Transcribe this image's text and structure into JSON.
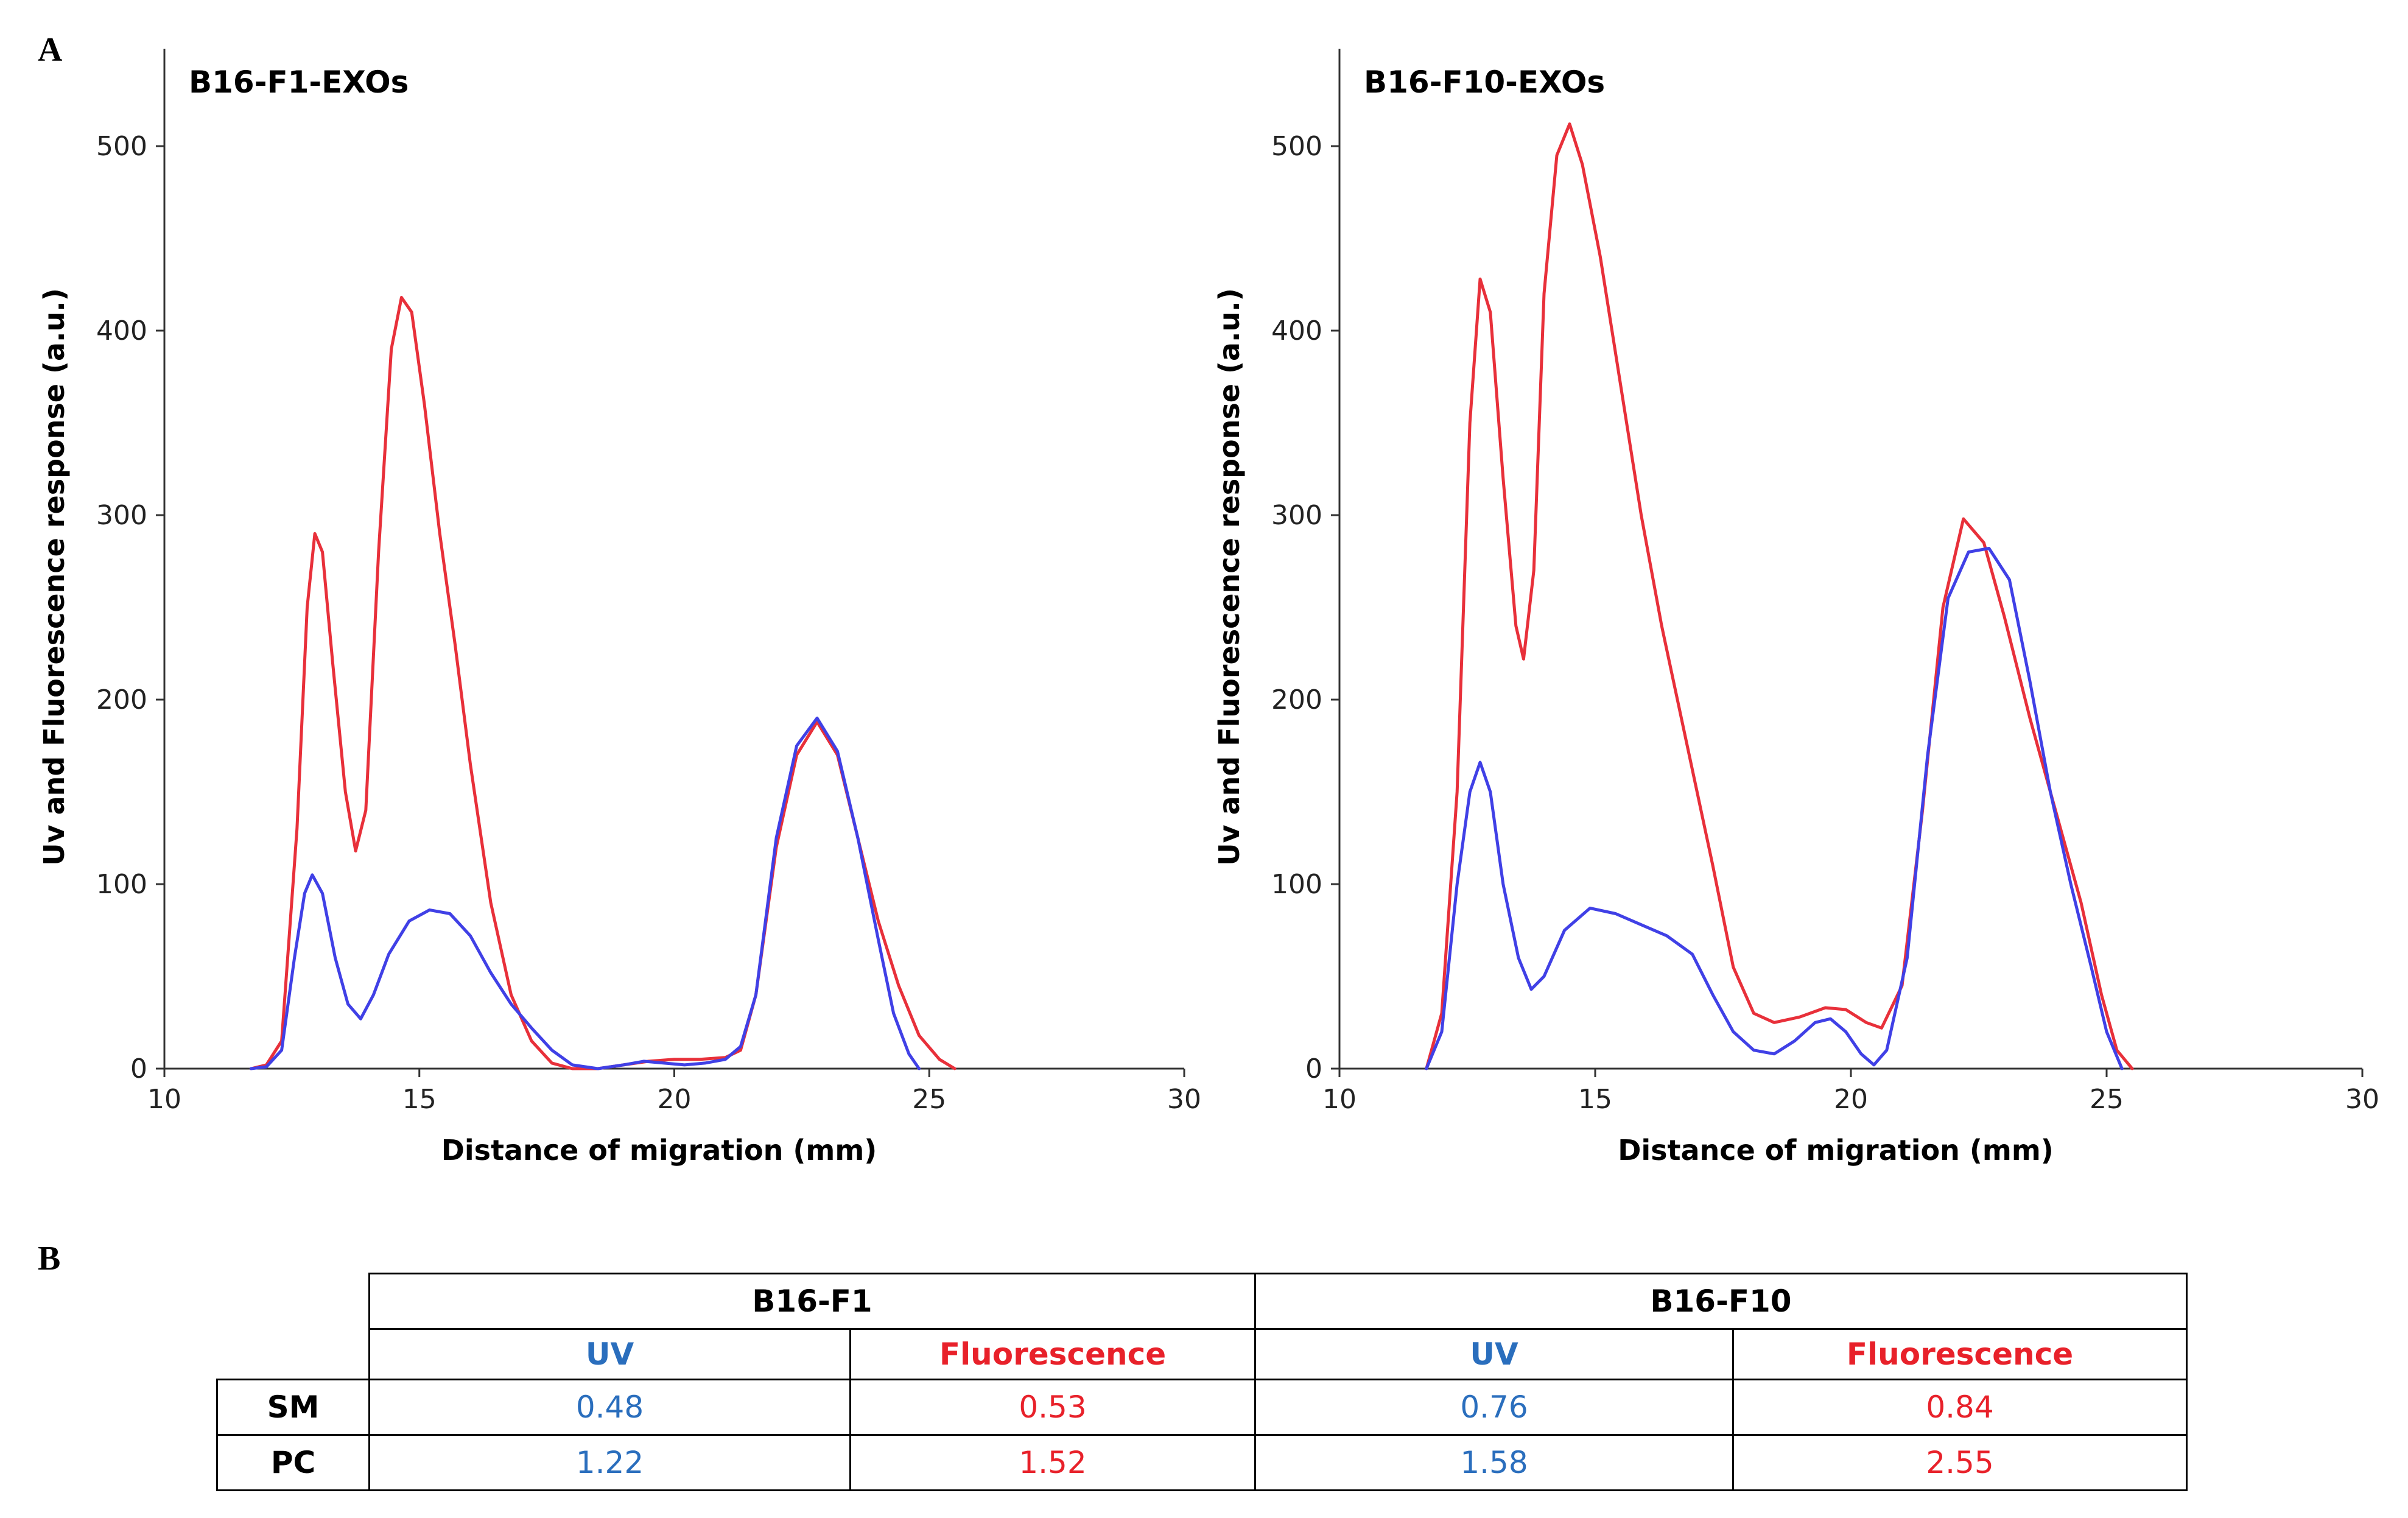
{
  "panel_labels": {
    "a": "A",
    "b": "B"
  },
  "colors": {
    "uv": "#4040e6",
    "fluorescence": "#e8303a",
    "uv_text": "#2a6ebd",
    "fluorescence_text": "#e8212a"
  },
  "chart_data": [
    {
      "type": "line",
      "title": "B16-F1-EXOs",
      "xlabel": "Distance of migration (mm)",
      "ylabel": "Uv and Fluorescence response (a.u.)",
      "xlim": [
        10,
        30
      ],
      "ylim": [
        0,
        550
      ],
      "xticks": [
        10,
        15,
        20,
        25,
        30
      ],
      "yticks": [
        0,
        100,
        200,
        300,
        400,
        500
      ],
      "series": [
        {
          "name": "Fluorescence",
          "color": "#e8303a",
          "points": [
            [
              11.7,
              0
            ],
            [
              12.0,
              2
            ],
            [
              12.3,
              15
            ],
            [
              12.6,
              130
            ],
            [
              12.8,
              250
            ],
            [
              12.95,
              290
            ],
            [
              13.1,
              280
            ],
            [
              13.3,
              220
            ],
            [
              13.55,
              150
            ],
            [
              13.75,
              118
            ],
            [
              13.95,
              140
            ],
            [
              14.2,
              280
            ],
            [
              14.45,
              390
            ],
            [
              14.65,
              418
            ],
            [
              14.85,
              410
            ],
            [
              15.1,
              360
            ],
            [
              15.4,
              290
            ],
            [
              15.7,
              230
            ],
            [
              16.0,
              165
            ],
            [
              16.4,
              90
            ],
            [
              16.8,
              40
            ],
            [
              17.2,
              15
            ],
            [
              17.6,
              3
            ],
            [
              18.0,
              0
            ],
            [
              18.5,
              0
            ],
            [
              19.0,
              2
            ],
            [
              19.5,
              4
            ],
            [
              20.0,
              5
            ],
            [
              20.5,
              5
            ],
            [
              21.0,
              6
            ],
            [
              21.3,
              10
            ],
            [
              21.6,
              40
            ],
            [
              22.0,
              120
            ],
            [
              22.4,
              170
            ],
            [
              22.8,
              188
            ],
            [
              23.2,
              170
            ],
            [
              23.6,
              125
            ],
            [
              24.0,
              80
            ],
            [
              24.4,
              45
            ],
            [
              24.8,
              18
            ],
            [
              25.2,
              5
            ],
            [
              25.5,
              0
            ]
          ]
        },
        {
          "name": "UV",
          "color": "#4040e6",
          "points": [
            [
              11.7,
              0
            ],
            [
              12.0,
              1
            ],
            [
              12.3,
              10
            ],
            [
              12.55,
              60
            ],
            [
              12.75,
              95
            ],
            [
              12.9,
              105
            ],
            [
              13.1,
              95
            ],
            [
              13.35,
              60
            ],
            [
              13.6,
              35
            ],
            [
              13.85,
              27
            ],
            [
              14.1,
              40
            ],
            [
              14.4,
              62
            ],
            [
              14.8,
              80
            ],
            [
              15.2,
              86
            ],
            [
              15.6,
              84
            ],
            [
              16.0,
              72
            ],
            [
              16.4,
              52
            ],
            [
              16.8,
              35
            ],
            [
              17.2,
              22
            ],
            [
              17.6,
              10
            ],
            [
              18.0,
              2
            ],
            [
              18.5,
              0
            ],
            [
              19.0,
              2
            ],
            [
              19.4,
              4
            ],
            [
              19.8,
              3
            ],
            [
              20.2,
              2
            ],
            [
              20.6,
              3
            ],
            [
              21.0,
              5
            ],
            [
              21.3,
              12
            ],
            [
              21.6,
              40
            ],
            [
              22.0,
              125
            ],
            [
              22.4,
              175
            ],
            [
              22.8,
              190
            ],
            [
              23.2,
              172
            ],
            [
              23.6,
              125
            ],
            [
              24.0,
              70
            ],
            [
              24.3,
              30
            ],
            [
              24.6,
              8
            ],
            [
              24.8,
              0
            ]
          ]
        }
      ]
    },
    {
      "type": "line",
      "title": "B16-F10-EXOs",
      "xlabel": "Distance of migration (mm)",
      "ylabel": "Uv and Fluorescence response (a.u.)",
      "xlim": [
        10,
        30
      ],
      "ylim": [
        0,
        550
      ],
      "xticks": [
        10,
        15,
        20,
        25,
        30
      ],
      "yticks": [
        0,
        100,
        200,
        300,
        400,
        500
      ],
      "series": [
        {
          "name": "Fluorescence",
          "color": "#e8303a",
          "points": [
            [
              11.7,
              0
            ],
            [
              12.0,
              30
            ],
            [
              12.3,
              150
            ],
            [
              12.55,
              350
            ],
            [
              12.75,
              428
            ],
            [
              12.95,
              410
            ],
            [
              13.2,
              320
            ],
            [
              13.45,
              240
            ],
            [
              13.6,
              222
            ],
            [
              13.8,
              270
            ],
            [
              14.0,
              420
            ],
            [
              14.25,
              495
            ],
            [
              14.5,
              512
            ],
            [
              14.75,
              490
            ],
            [
              15.1,
              440
            ],
            [
              15.5,
              370
            ],
            [
              15.9,
              300
            ],
            [
              16.3,
              240
            ],
            [
              16.8,
              175
            ],
            [
              17.3,
              110
            ],
            [
              17.7,
              55
            ],
            [
              18.1,
              30
            ],
            [
              18.5,
              25
            ],
            [
              19.0,
              28
            ],
            [
              19.5,
              33
            ],
            [
              19.9,
              32
            ],
            [
              20.3,
              25
            ],
            [
              20.6,
              22
            ],
            [
              21.0,
              45
            ],
            [
              21.4,
              140
            ],
            [
              21.8,
              250
            ],
            [
              22.2,
              298
            ],
            [
              22.6,
              285
            ],
            [
              23.0,
              245
            ],
            [
              23.5,
              190
            ],
            [
              24.0,
              140
            ],
            [
              24.5,
              90
            ],
            [
              24.9,
              40
            ],
            [
              25.2,
              10
            ],
            [
              25.5,
              0
            ]
          ]
        },
        {
          "name": "UV",
          "color": "#4040e6",
          "points": [
            [
              11.7,
              0
            ],
            [
              12.0,
              20
            ],
            [
              12.3,
              100
            ],
            [
              12.55,
              150
            ],
            [
              12.75,
              166
            ],
            [
              12.95,
              150
            ],
            [
              13.2,
              100
            ],
            [
              13.5,
              60
            ],
            [
              13.75,
              43
            ],
            [
              14.0,
              50
            ],
            [
              14.4,
              75
            ],
            [
              14.9,
              87
            ],
            [
              15.4,
              84
            ],
            [
              15.9,
              78
            ],
            [
              16.4,
              72
            ],
            [
              16.9,
              62
            ],
            [
              17.3,
              40
            ],
            [
              17.7,
              20
            ],
            [
              18.1,
              10
            ],
            [
              18.5,
              8
            ],
            [
              18.9,
              15
            ],
            [
              19.3,
              25
            ],
            [
              19.6,
              27
            ],
            [
              19.9,
              20
            ],
            [
              20.2,
              8
            ],
            [
              20.45,
              2
            ],
            [
              20.7,
              10
            ],
            [
              21.1,
              60
            ],
            [
              21.5,
              170
            ],
            [
              21.9,
              255
            ],
            [
              22.3,
              280
            ],
            [
              22.7,
              282
            ],
            [
              23.1,
              265
            ],
            [
              23.5,
              210
            ],
            [
              23.9,
              150
            ],
            [
              24.3,
              100
            ],
            [
              24.7,
              55
            ],
            [
              25.0,
              20
            ],
            [
              25.3,
              0
            ]
          ]
        }
      ]
    }
  ],
  "table": {
    "groups": [
      "B16-F1",
      "B16-F10"
    ],
    "subheaders": [
      "UV",
      "Fluorescence",
      "UV",
      "Fluorescence"
    ],
    "rows": [
      {
        "label": "SM",
        "values": [
          "0.48",
          "0.53",
          "0.76",
          "0.84"
        ]
      },
      {
        "label": "PC",
        "values": [
          "1.22",
          "1.52",
          "1.58",
          "2.55"
        ]
      }
    ]
  }
}
